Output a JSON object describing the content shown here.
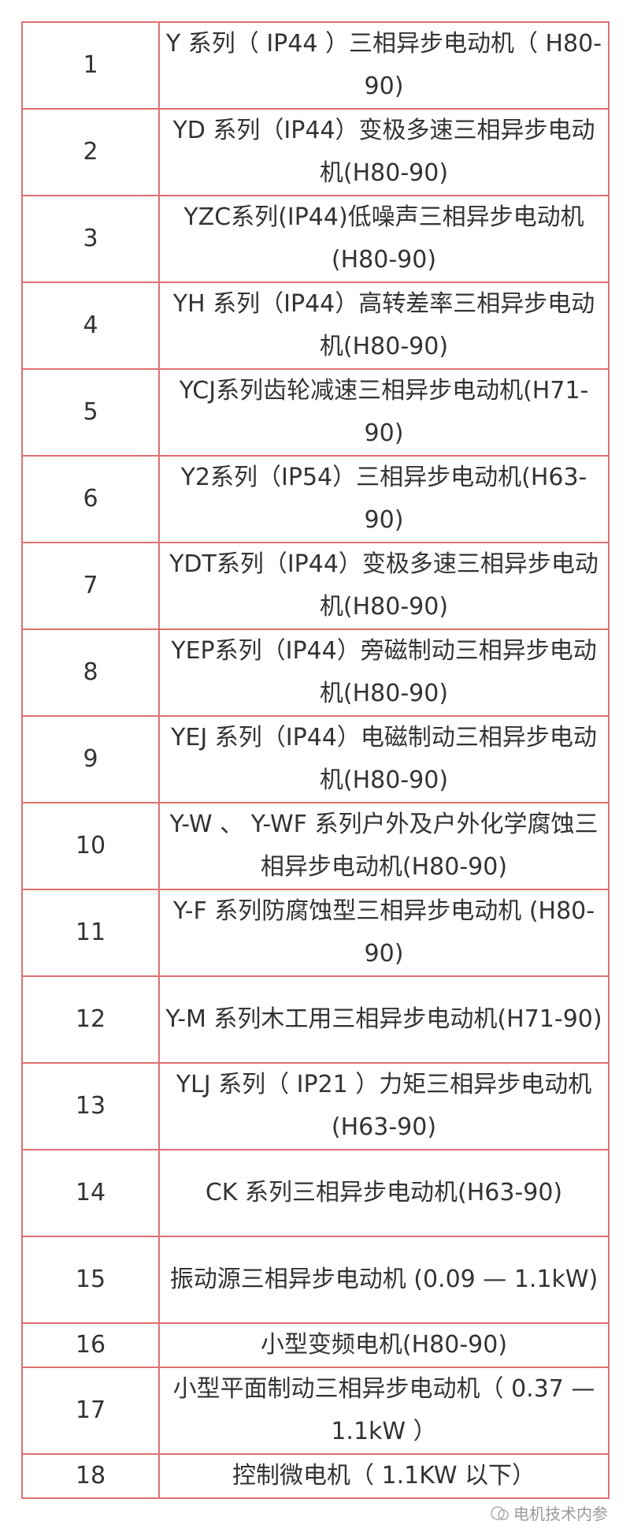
{
  "rows": [
    {
      "no": "1",
      "name": "Y 系列（ IP44 ）三相异步电动机（ H80-90)"
    },
    {
      "no": "2",
      "name": "YD 系列（IP44）变极多速三相异步电动机(H80-90)"
    },
    {
      "no": "3",
      "name": "YZC系列(IP44)低噪声三相异步电动机(H80-90)"
    },
    {
      "no": "4",
      "name": "YH 系列（IP44）高转差率三相异步电动机(H80-90)"
    },
    {
      "no": "5",
      "name": "YCJ系列齿轮减速三相异步电动机(H71-90)"
    },
    {
      "no": "6",
      "name": "Y2系列（IP54）三相异步电动机(H63-90)"
    },
    {
      "no": "7",
      "name": "YDT系列（IP44）变极多速三相异步电动机(H80-90)"
    },
    {
      "no": "8",
      "name": "YEP系列（IP44）旁磁制动三相异步电动机(H80-90)"
    },
    {
      "no": "9",
      "name": "YEJ 系列（IP44）电磁制动三相异步电动机(H80-90)"
    },
    {
      "no": "10",
      "name": "Y-W 、 Y-WF 系列户外及户外化学腐蚀三相异步电动机(H80-90)"
    },
    {
      "no": "11",
      "name": "Y-F 系列防腐蚀型三相异步电动机 (H80-90)"
    },
    {
      "no": "12",
      "name": "Y-M 系列木工用三相异步电动机(H71-90)"
    },
    {
      "no": "13",
      "name": "YLJ 系列（ IP21 ）力矩三相异步电动机(H63-90)"
    },
    {
      "no": "14",
      "name": "CK 系列三相异步电动机(H63-90)"
    },
    {
      "no": "15",
      "name": "振动源三相异步电动机 (0.09 — 1.1kW)"
    },
    {
      "no": "16",
      "name": "小型变频电机(H80-90)"
    },
    {
      "no": "17",
      "name": "小型平面制动三相异步电动机（ 0.37 — 1.1kW ）"
    },
    {
      "no": "18",
      "name": "控制微电机（ 1.1KW 以下）"
    }
  ],
  "watermark": "电机技术内参",
  "colors": {
    "border": "#e07070",
    "text": "#333333"
  }
}
